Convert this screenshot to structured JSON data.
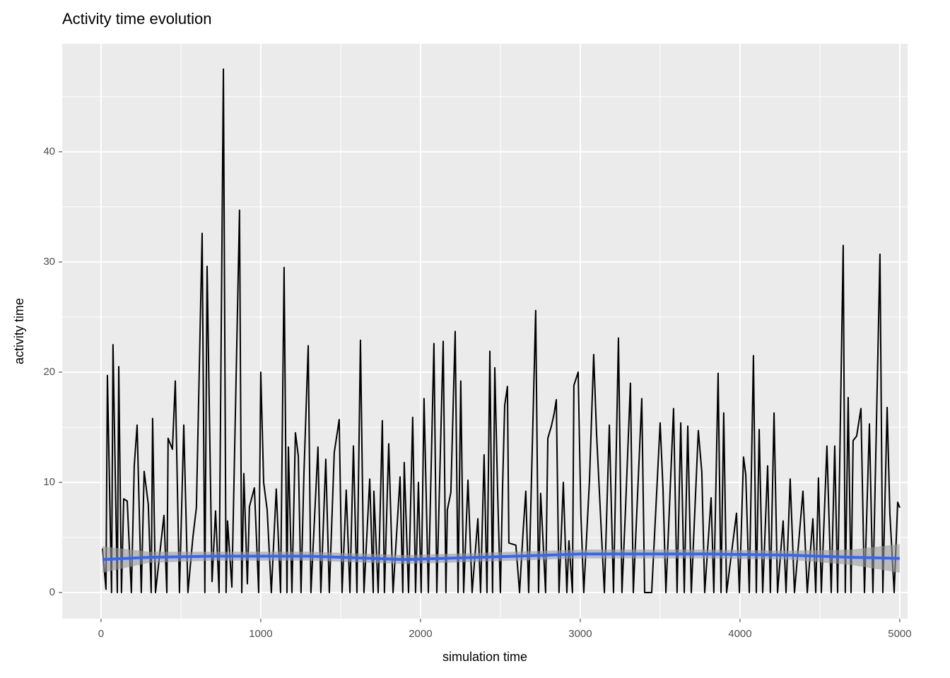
{
  "chart_data": {
    "type": "line",
    "title": "Activity time evolution",
    "xlabel": "simulation time",
    "ylabel": "activity time",
    "color": "#000000",
    "x": [
      9,
      31,
      40,
      66,
      75,
      102,
      111,
      128,
      142,
      164,
      190,
      208,
      226,
      252,
      270,
      296,
      314,
      323,
      341,
      394,
      412,
      420,
      447,
      465,
      491,
      518,
      544,
      575,
      597,
      633,
      650,
      664,
      695,
      717,
      739,
      766,
      783,
      792,
      819,
      867,
      881,
      894,
      916,
      929,
      960,
      987,
      1000,
      1018,
      1040,
      1066,
      1097,
      1124,
      1146,
      1164,
      1173,
      1195,
      1217,
      1235,
      1252,
      1270,
      1297,
      1314,
      1358,
      1376,
      1407,
      1429,
      1460,
      1491,
      1509,
      1535,
      1558,
      1580,
      1602,
      1624,
      1646,
      1682,
      1704,
      1708,
      1735,
      1761,
      1774,
      1801,
      1828,
      1872,
      1889,
      1898,
      1925,
      1951,
      1969,
      1987,
      2004,
      2022,
      2049,
      2084,
      2102,
      2142,
      2159,
      2168,
      2190,
      2217,
      2235,
      2252,
      2270,
      2297,
      2323,
      2359,
      2376,
      2398,
      2416,
      2434,
      2451,
      2465,
      2482,
      2500,
      2513,
      2527,
      2544,
      2553,
      2597,
      2620,
      2642,
      2659,
      2677,
      2721,
      2739,
      2752,
      2783,
      2797,
      2819,
      2836,
      2850,
      2867,
      2894,
      2916,
      2929,
      2951,
      2960,
      2987,
      3004,
      3022,
      3058,
      3084,
      3102,
      3137,
      3151,
      3182,
      3208,
      3239,
      3261,
      3283,
      3314,
      3332,
      3385,
      3403,
      3447,
      3500,
      3518,
      3536,
      3584,
      3606,
      3629,
      3651,
      3673,
      3695,
      3739,
      3761,
      3779,
      3819,
      3836,
      3863,
      3881,
      3898,
      3916,
      3978,
      3996,
      4022,
      4036,
      4058,
      4084,
      4102,
      4120,
      4142,
      4173,
      4190,
      4213,
      4235,
      4270,
      4288,
      4314,
      4341,
      4394,
      4421,
      4456,
      4474,
      4491,
      4509,
      4544,
      4571,
      4593,
      4611,
      4646,
      4659,
      4677,
      4695,
      4708,
      4730,
      4757,
      4779,
      4810,
      4832,
      4876,
      4894,
      4921,
      4938,
      4965,
      4987,
      5000
    ],
    "values": [
      4,
      0.3,
      19.7,
      0,
      22.5,
      0,
      20.5,
      0,
      8.5,
      8.3,
      0,
      11.5,
      15.2,
      0,
      11,
      8,
      0,
      15.8,
      0,
      7,
      0,
      14,
      13,
      19.2,
      0,
      15.2,
      0,
      5,
      7.7,
      32.6,
      0,
      29.6,
      1,
      7.4,
      0,
      47.5,
      0,
      6.5,
      0.5,
      34.7,
      0,
      10.8,
      0.8,
      7.8,
      9.5,
      0,
      20,
      10,
      7.5,
      0,
      9.4,
      0,
      29.5,
      0,
      13.2,
      0,
      14.5,
      12.4,
      0,
      10.7,
      22.4,
      0,
      13.2,
      0,
      12.1,
      0,
      12.7,
      15.7,
      0,
      9.3,
      0,
      13.3,
      0,
      22.9,
      0,
      10.3,
      0,
      9.2,
      0,
      15.6,
      0,
      13.5,
      0,
      10.5,
      0,
      11.8,
      0,
      15.9,
      0,
      10,
      0,
      17.6,
      0,
      22.6,
      0,
      22.8,
      0,
      7.5,
      9.1,
      23.7,
      0,
      19.2,
      0,
      10.2,
      0,
      6.7,
      0,
      12.5,
      0,
      21.9,
      0,
      20.4,
      9.5,
      0,
      9.2,
      17,
      18.7,
      4.5,
      4.3,
      0,
      5.5,
      9.2,
      0,
      25.6,
      0,
      9,
      0,
      14,
      15.1,
      16.2,
      17.5,
      0,
      10,
      0,
      4.7,
      0,
      18.8,
      20,
      7,
      0,
      10.3,
      21.6,
      14.4,
      4,
      0,
      15.2,
      0,
      23.1,
      0,
      7.5,
      19,
      0,
      17.6,
      0,
      0,
      15.4,
      9.4,
      0,
      16.7,
      0,
      15.4,
      0,
      15.1,
      0,
      14.7,
      10.9,
      0,
      8.6,
      0,
      19.9,
      0,
      16.3,
      0,
      7.2,
      0,
      12.3,
      10.7,
      0,
      21.5,
      0,
      14.8,
      0,
      11.5,
      0,
      16.3,
      0,
      6.5,
      0,
      10.3,
      0,
      9.2,
      0,
      6.7,
      0,
      10.4,
      0,
      13.3,
      0,
      13.3,
      0,
      31.5,
      0,
      17.7,
      0,
      13.8,
      14.2,
      16.7,
      0,
      15.3,
      0,
      30.7,
      0,
      16.8,
      7.2,
      0,
      8.2,
      7.7
    ],
    "smooth": {
      "color": "#3366ff",
      "band_color": "#999999",
      "x": [
        9,
        300,
        700,
        1300,
        1900,
        2600,
        3000,
        3800,
        4300,
        4700,
        5000
      ],
      "values": [
        3.0,
        3.2,
        3.3,
        3.3,
        3.0,
        3.3,
        3.5,
        3.5,
        3.4,
        3.2,
        3.1
      ],
      "lower": [
        1.8,
        2.7,
        2.9,
        2.9,
        2.6,
        2.9,
        3.1,
        3.1,
        3.0,
        2.5,
        1.8
      ],
      "upper": [
        4.2,
        3.7,
        3.7,
        3.7,
        3.4,
        3.7,
        3.9,
        3.9,
        3.8,
        3.9,
        4.4
      ]
    },
    "xlim": [
      -243,
      5049
    ],
    "ylim": [
      -2.37,
      49.8
    ],
    "xticks": [
      0,
      1000,
      2000,
      3000,
      4000,
      5000
    ],
    "yticks": [
      0,
      10,
      20,
      30,
      40
    ],
    "xminor": [
      500,
      1500,
      2500,
      3500,
      4500
    ],
    "yminor": [
      5,
      15,
      25,
      35,
      45
    ],
    "grid": true
  }
}
